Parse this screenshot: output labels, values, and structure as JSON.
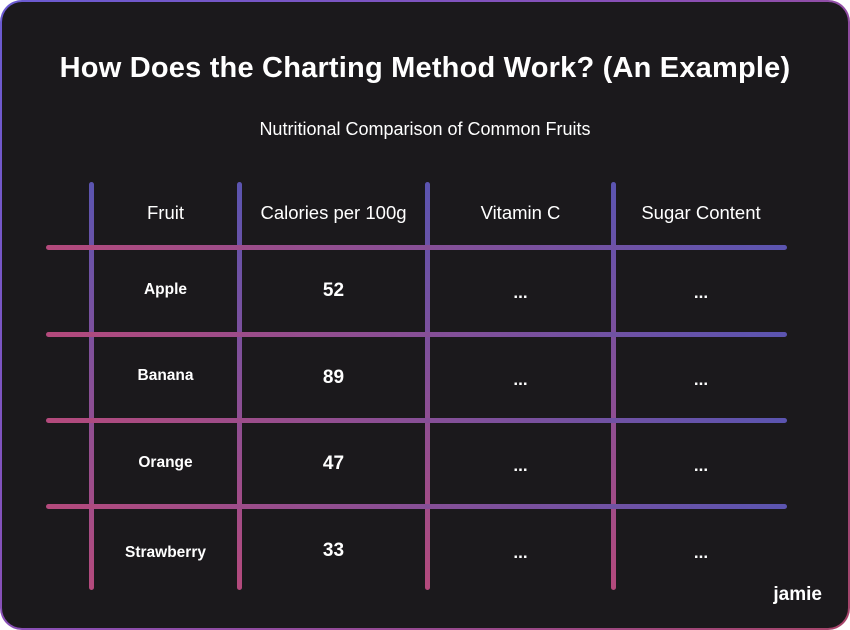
{
  "title": "How Does the Charting Method Work? (An Example)",
  "subtitle": "Nutritional Comparison of Common Fruits",
  "brand": "jamie",
  "colors": {
    "background": "#1b191c",
    "grid_start": "#b44a7c",
    "grid_end": "#5b54b0",
    "text": "#ffffff"
  },
  "table": {
    "headers": [
      "Fruit",
      "Calories per 100g",
      "Vitamin C",
      "Sugar Content"
    ],
    "rows": [
      {
        "fruit": "Apple",
        "calories": "52",
        "vitamin_c": "...",
        "sugar": "..."
      },
      {
        "fruit": "Banana",
        "calories": "89",
        "vitamin_c": "...",
        "sugar": "..."
      },
      {
        "fruit": "Orange",
        "calories": "47",
        "vitamin_c": "...",
        "sugar": "..."
      },
      {
        "fruit": "Strawberry",
        "calories": "33",
        "vitamin_c": "...",
        "sugar": "..."
      }
    ]
  }
}
